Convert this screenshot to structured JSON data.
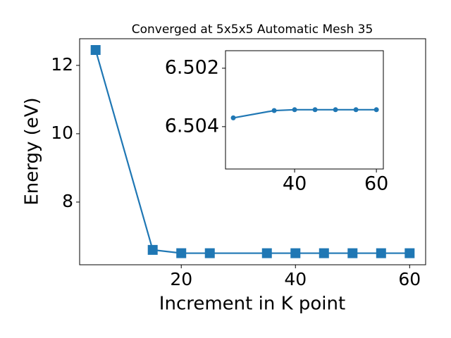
{
  "chart_data": [
    {
      "type": "line",
      "title": "Converged at 5x5x5 Automatic Mesh 35",
      "x_label": "Increment in K point",
      "y_label": "Energy (eV)",
      "marker": "square",
      "color": "#1f77b4",
      "x": [
        5,
        15,
        20,
        25,
        35,
        40,
        45,
        50,
        55,
        60
      ],
      "values": [
        12.45,
        6.6,
        6.504,
        6.5037,
        6.5035,
        6.5034,
        6.5034,
        6.5034,
        6.5034,
        6.5034
      ],
      "xlim": [
        2.2,
        62.8
      ],
      "xticks": [
        20,
        40,
        60
      ],
      "ylim": [
        6.165,
        12.78
      ],
      "yticks": [
        8,
        10,
        12
      ]
    },
    {
      "type": "line",
      "marker": "circle",
      "color": "#1f77b4",
      "x": [
        25,
        35,
        40,
        45,
        50,
        55,
        60
      ],
      "values": [
        6.5037,
        6.50345,
        6.50342,
        6.50342,
        6.50342,
        6.50342,
        6.50342
      ],
      "xlim": [
        23.1,
        61.7
      ],
      "xticks": [
        40,
        60
      ],
      "ylim": [
        6.50545,
        6.5014
      ],
      "yticks": [
        6.502,
        6.504
      ]
    }
  ]
}
